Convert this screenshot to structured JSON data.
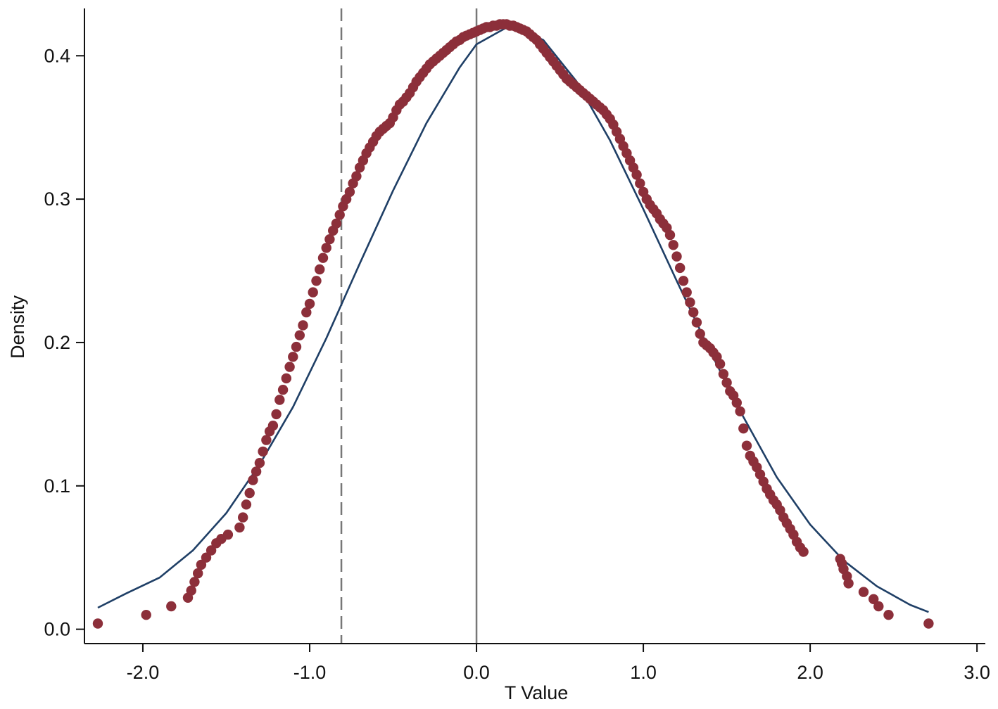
{
  "chart_data": {
    "type": "scatter",
    "title": "",
    "xlabel": "T Value",
    "ylabel": "Density",
    "xlim": [
      -2.35,
      3.05
    ],
    "ylim": [
      -0.01,
      0.433
    ],
    "xticks": [
      -2.0,
      -1.0,
      0.0,
      1.0,
      2.0,
      3.0
    ],
    "xtick_labels": [
      "-2.0",
      "-1.0",
      "0.0",
      "1.0",
      "2.0",
      "3.0"
    ],
    "yticks": [
      0.0,
      0.1,
      0.2,
      0.3,
      0.4
    ],
    "ytick_labels": [
      "0.0",
      "0.1",
      "0.2",
      "0.3",
      "0.4"
    ],
    "grid": false,
    "legend": "none",
    "reference_lines": [
      {
        "x": -0.81,
        "style": "dashed",
        "color": "#777777"
      },
      {
        "x": 0.0,
        "style": "solid",
        "color": "#777777"
      }
    ],
    "series": [
      {
        "type": "line",
        "color": "#1f3f66",
        "x": [
          -2.27,
          -2.1,
          -1.9,
          -1.7,
          -1.5,
          -1.3,
          -1.1,
          -0.9,
          -0.7,
          -0.5,
          -0.3,
          -0.1,
          0.0,
          0.2,
          0.4,
          0.6,
          0.8,
          1.0,
          1.2,
          1.4,
          1.6,
          1.8,
          2.0,
          2.2,
          2.4,
          2.6,
          2.71
        ],
        "y": [
          0.015,
          0.025,
          0.036,
          0.055,
          0.081,
          0.115,
          0.155,
          0.203,
          0.255,
          0.306,
          0.353,
          0.392,
          0.408,
          0.421,
          0.411,
          0.382,
          0.341,
          0.293,
          0.243,
          0.194,
          0.148,
          0.106,
          0.073,
          0.048,
          0.03,
          0.017,
          0.012
        ]
      },
      {
        "type": "scatter",
        "color": "#8c2f3a",
        "x": [
          -2.27,
          -1.98,
          -1.83,
          -1.73,
          -1.71,
          -1.69,
          -1.67,
          -1.65,
          -1.62,
          -1.59,
          -1.56,
          -1.53,
          -1.49,
          -1.42,
          -1.4,
          -1.38,
          -1.36,
          -1.34,
          -1.32,
          -1.3,
          -1.28,
          -1.26,
          -1.24,
          -1.22,
          -1.2,
          -1.18,
          -1.16,
          -1.14,
          -1.12,
          -1.1,
          -1.08,
          -1.06,
          -1.04,
          -1.02,
          -1.0,
          -0.98,
          -0.96,
          -0.94,
          -0.92,
          -0.9,
          -0.88,
          -0.86,
          -0.84,
          -0.82,
          -0.8,
          -0.78,
          -0.76,
          -0.74,
          -0.72,
          -0.7,
          -0.68,
          -0.66,
          -0.64,
          -0.62,
          -0.6,
          -0.58,
          -0.56,
          -0.54,
          -0.52,
          -0.5,
          -0.48,
          -0.46,
          -0.44,
          -0.42,
          -0.4,
          -0.38,
          -0.36,
          -0.34,
          -0.32,
          -0.3,
          -0.28,
          -0.26,
          -0.24,
          -0.22,
          -0.2,
          -0.18,
          -0.16,
          -0.14,
          -0.12,
          -0.1,
          -0.08,
          -0.06,
          -0.04,
          -0.02,
          0.0,
          0.02,
          0.04,
          0.06,
          0.08,
          0.1,
          0.12,
          0.14,
          0.16,
          0.18,
          0.2,
          0.22,
          0.24,
          0.26,
          0.28,
          0.3,
          0.32,
          0.34,
          0.36,
          0.38,
          0.4,
          0.42,
          0.44,
          0.46,
          0.48,
          0.5,
          0.52,
          0.54,
          0.56,
          0.58,
          0.6,
          0.62,
          0.64,
          0.66,
          0.68,
          0.7,
          0.72,
          0.74,
          0.76,
          0.78,
          0.8,
          0.82,
          0.84,
          0.86,
          0.88,
          0.9,
          0.92,
          0.94,
          0.96,
          0.98,
          1.0,
          1.02,
          1.04,
          1.06,
          1.08,
          1.1,
          1.12,
          1.14,
          1.16,
          1.18,
          1.2,
          1.22,
          1.24,
          1.26,
          1.28,
          1.3,
          1.32,
          1.34,
          1.36,
          1.38,
          1.4,
          1.42,
          1.44,
          1.46,
          1.48,
          1.5,
          1.52,
          1.54,
          1.56,
          1.58,
          1.6,
          1.62,
          1.64,
          1.66,
          1.68,
          1.7,
          1.72,
          1.74,
          1.76,
          1.78,
          1.8,
          1.82,
          1.84,
          1.86,
          1.88,
          1.9,
          1.92,
          1.94,
          1.96,
          2.18,
          2.19,
          2.2,
          2.22,
          2.23,
          2.32,
          2.38,
          2.41,
          2.47,
          2.71
        ],
        "y": [
          0.004,
          0.01,
          0.016,
          0.022,
          0.027,
          0.033,
          0.039,
          0.045,
          0.05,
          0.055,
          0.06,
          0.063,
          0.066,
          0.071,
          0.078,
          0.087,
          0.095,
          0.104,
          0.11,
          0.116,
          0.124,
          0.132,
          0.138,
          0.142,
          0.15,
          0.16,
          0.167,
          0.175,
          0.183,
          0.19,
          0.197,
          0.205,
          0.212,
          0.221,
          0.227,
          0.235,
          0.243,
          0.251,
          0.259,
          0.266,
          0.272,
          0.278,
          0.283,
          0.289,
          0.295,
          0.3,
          0.305,
          0.311,
          0.316,
          0.322,
          0.327,
          0.332,
          0.336,
          0.34,
          0.344,
          0.347,
          0.349,
          0.351,
          0.353,
          0.357,
          0.362,
          0.366,
          0.368,
          0.371,
          0.374,
          0.378,
          0.382,
          0.385,
          0.388,
          0.391,
          0.394,
          0.396,
          0.398,
          0.4,
          0.402,
          0.404,
          0.406,
          0.408,
          0.41,
          0.411,
          0.413,
          0.414,
          0.415,
          0.416,
          0.417,
          0.418,
          0.419,
          0.42,
          0.42,
          0.421,
          0.421,
          0.422,
          0.422,
          0.422,
          0.421,
          0.421,
          0.42,
          0.419,
          0.418,
          0.417,
          0.415,
          0.413,
          0.411,
          0.408,
          0.405,
          0.402,
          0.399,
          0.396,
          0.393,
          0.39,
          0.387,
          0.384,
          0.382,
          0.38,
          0.378,
          0.376,
          0.374,
          0.372,
          0.37,
          0.368,
          0.366,
          0.364,
          0.362,
          0.359,
          0.356,
          0.352,
          0.347,
          0.342,
          0.337,
          0.332,
          0.327,
          0.322,
          0.317,
          0.311,
          0.305,
          0.3,
          0.296,
          0.293,
          0.29,
          0.286,
          0.283,
          0.28,
          0.275,
          0.268,
          0.26,
          0.252,
          0.243,
          0.235,
          0.228,
          0.221,
          0.214,
          0.206,
          0.2,
          0.198,
          0.196,
          0.193,
          0.19,
          0.185,
          0.178,
          0.172,
          0.166,
          0.163,
          0.158,
          0.152,
          0.14,
          0.128,
          0.121,
          0.117,
          0.113,
          0.108,
          0.103,
          0.098,
          0.094,
          0.09,
          0.087,
          0.083,
          0.078,
          0.074,
          0.07,
          0.066,
          0.061,
          0.057,
          0.054,
          0.049,
          0.046,
          0.042,
          0.037,
          0.032,
          0.026,
          0.021,
          0.016,
          0.01,
          0.004
        ]
      }
    ]
  }
}
